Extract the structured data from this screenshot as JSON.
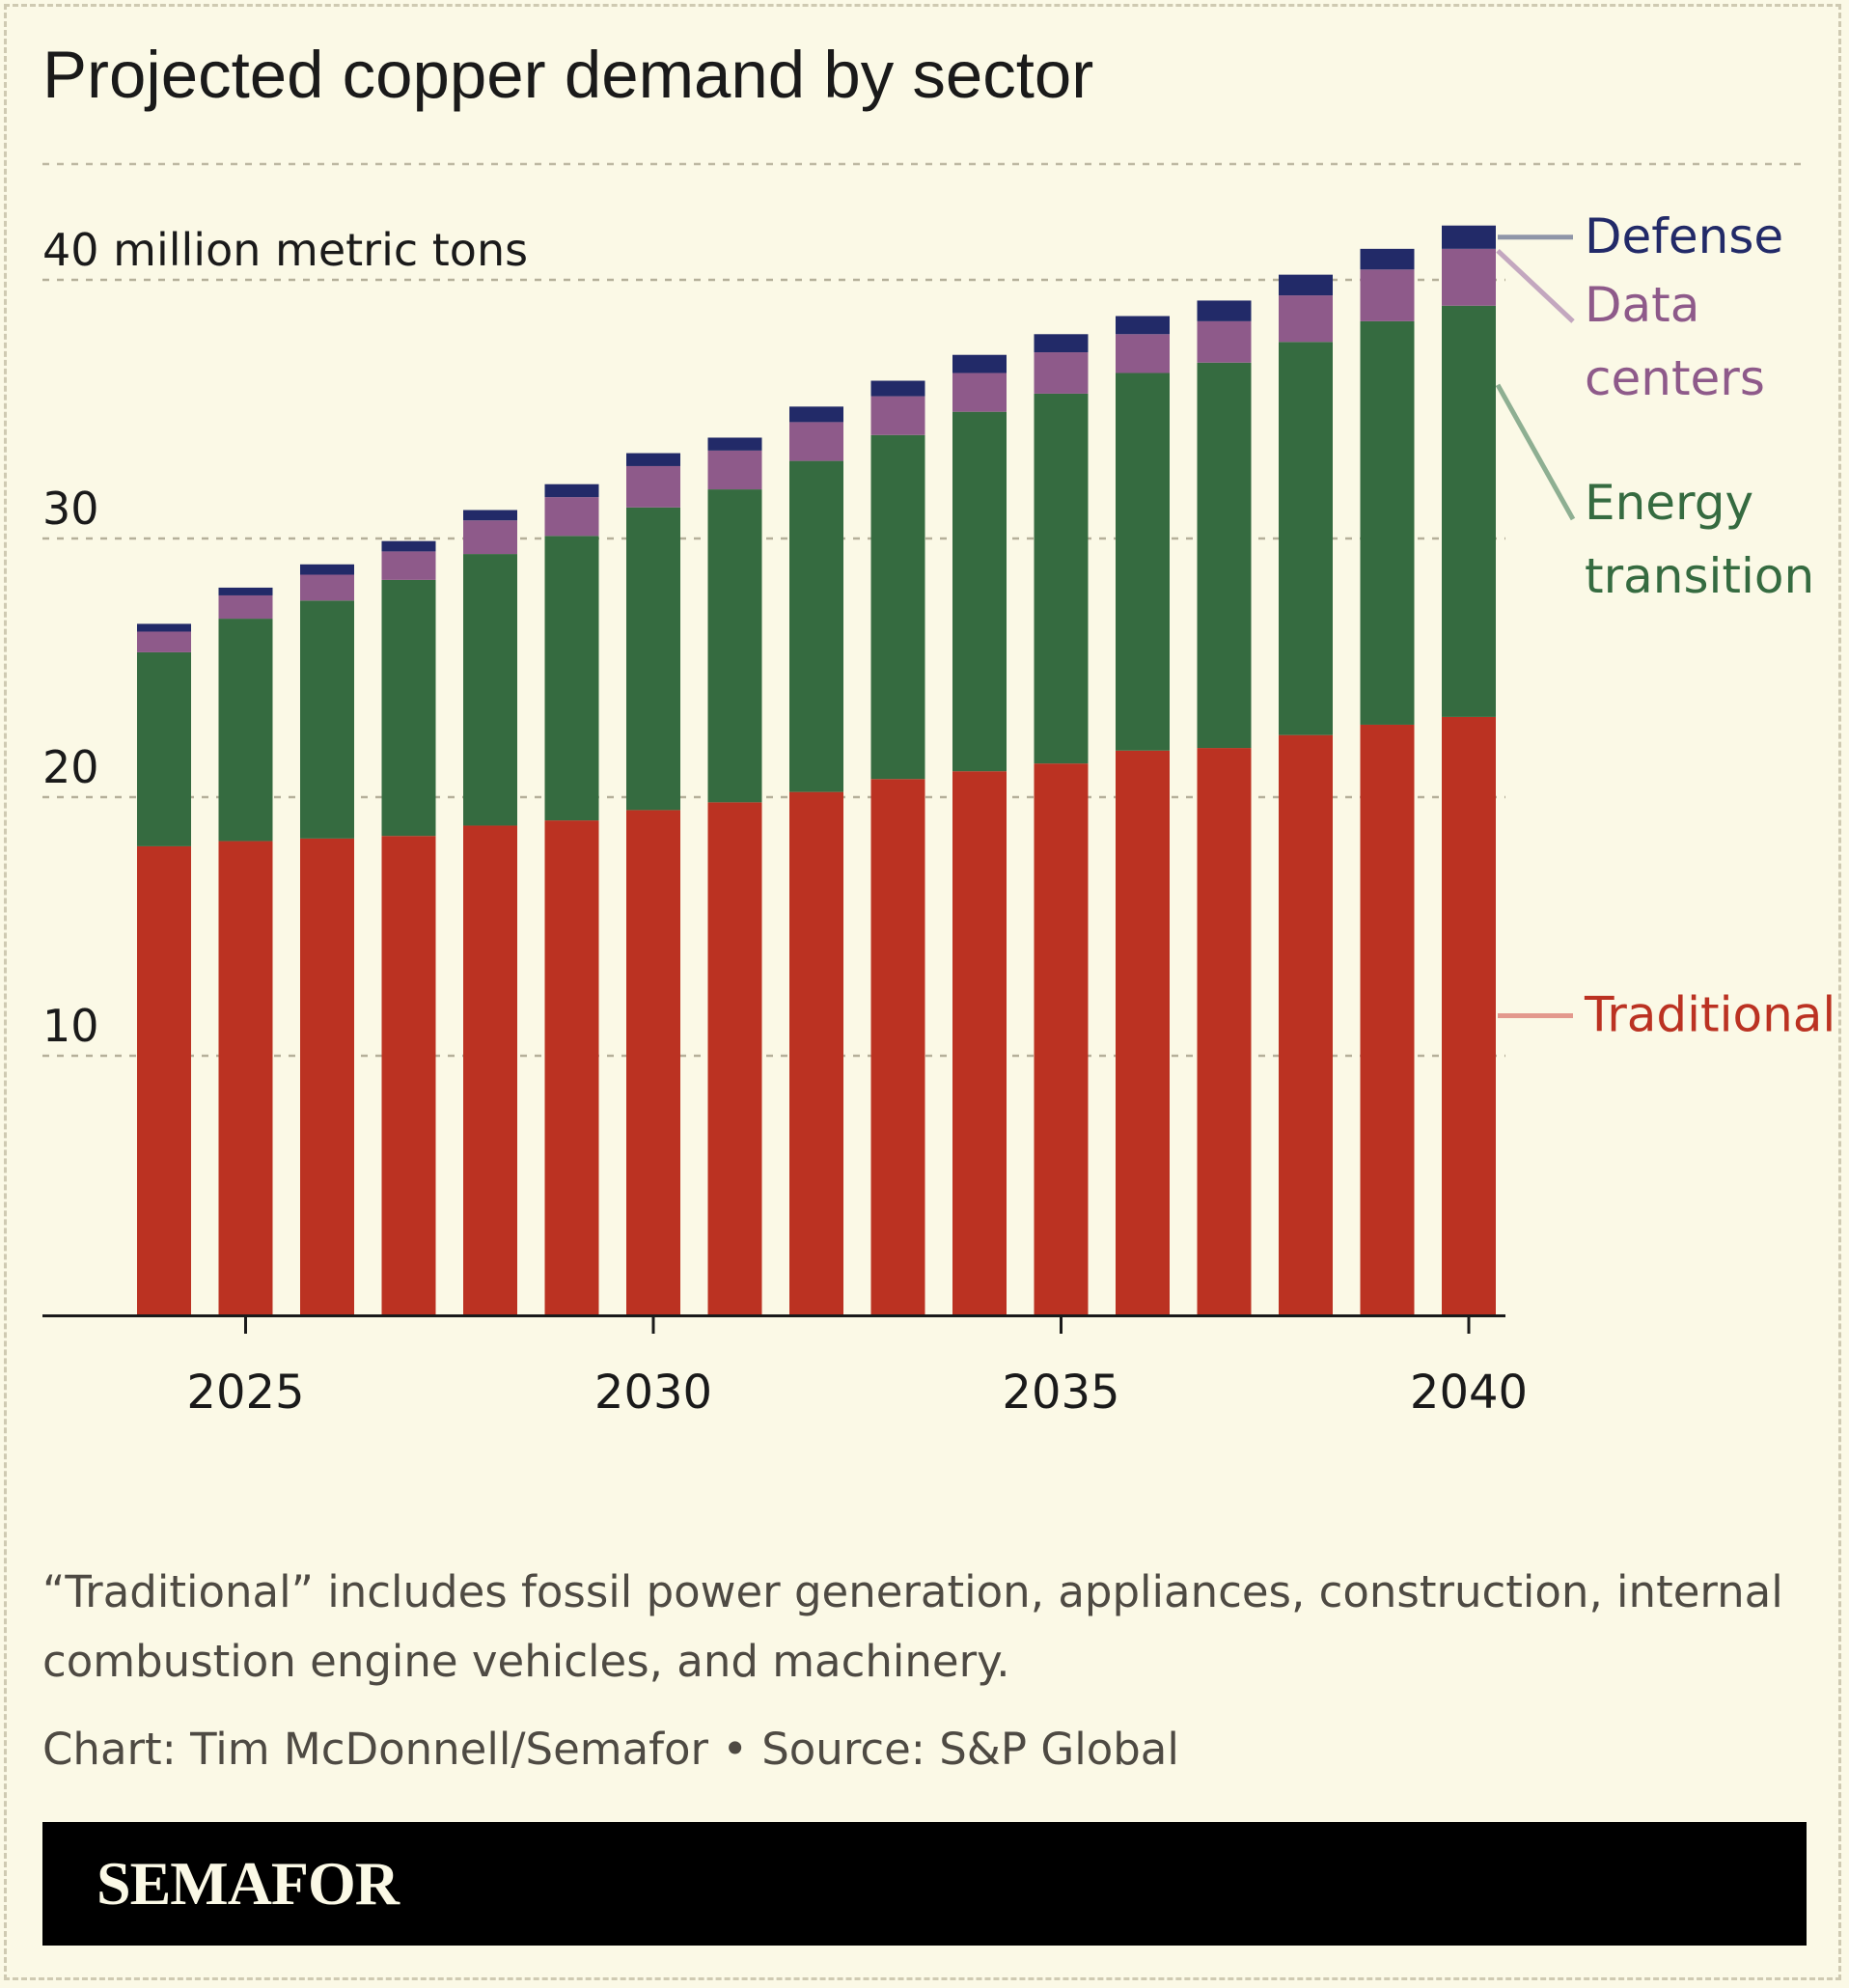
{
  "chart_data": {
    "type": "bar",
    "stacked": true,
    "title": "Projected copper demand by sector",
    "unit_label": "million metric tons",
    "x": [
      2024,
      2025,
      2026,
      2027,
      2028,
      2029,
      2030,
      2031,
      2032,
      2033,
      2034,
      2035,
      2036,
      2037,
      2038,
      2039,
      2040
    ],
    "x_ticks": [
      {
        "value": 2025,
        "label": "2025"
      },
      {
        "value": 2030,
        "label": "2030"
      },
      {
        "value": 2035,
        "label": "2035"
      },
      {
        "value": 2040,
        "label": "2040"
      }
    ],
    "y_ticks": [
      {
        "value": 10,
        "label": "10"
      },
      {
        "value": 20,
        "label": "20"
      },
      {
        "value": 30,
        "label": "30"
      },
      {
        "value": 40,
        "label": "40 million metric tons"
      }
    ],
    "ylim": [
      0,
      42
    ],
    "grid": true,
    "legend": "direct labels at right",
    "series": [
      {
        "name": "Traditional",
        "color": "#bb3222",
        "values": [
          18.1,
          18.3,
          18.4,
          18.5,
          18.9,
          19.1,
          19.5,
          19.8,
          20.2,
          20.7,
          21.0,
          21.3,
          21.8,
          21.9,
          22.4,
          22.8,
          23.1
        ]
      },
      {
        "name": "Energy transition",
        "color": "#356b40",
        "values": [
          7.5,
          8.6,
          9.2,
          9.9,
          10.5,
          11.0,
          11.7,
          12.1,
          12.8,
          13.3,
          13.9,
          14.3,
          14.6,
          14.9,
          15.2,
          15.6,
          15.9
        ]
      },
      {
        "name": "Data centers",
        "color": "#8e5a8a",
        "values": [
          0.8,
          0.9,
          1.0,
          1.1,
          1.3,
          1.5,
          1.6,
          1.5,
          1.5,
          1.5,
          1.5,
          1.6,
          1.5,
          1.6,
          1.8,
          2.0,
          2.2
        ]
      },
      {
        "name": "Defense",
        "color": "#222a68",
        "values": [
          0.3,
          0.3,
          0.4,
          0.4,
          0.4,
          0.5,
          0.5,
          0.5,
          0.6,
          0.6,
          0.7,
          0.7,
          0.7,
          0.8,
          0.8,
          0.8,
          0.9
        ]
      }
    ],
    "direct_labels": [
      {
        "series": "Defense",
        "lines": [
          "Defense"
        ],
        "color": "#222a68",
        "leader_color": "#8f96a8"
      },
      {
        "series": "Data centers",
        "lines": [
          "Data",
          "centers"
        ],
        "color": "#8e5a8a",
        "leader_color": "#c3a7bf"
      },
      {
        "series": "Energy transition",
        "lines": [
          "Energy",
          "transition"
        ],
        "color": "#356b40",
        "leader_color": "#8eaf92"
      },
      {
        "series": "Traditional",
        "lines": [
          "Traditional"
        ],
        "color": "#bb3222",
        "leader_color": "#e3998d"
      }
    ]
  },
  "footnote": "“Traditional” includes fossil power generation, appliances, construction, internal combustion engine vehicles, and machinery.",
  "credit": "Chart: Tim McDonnell/Semafor • Source: S&P Global",
  "brand": "SEMAFOR"
}
